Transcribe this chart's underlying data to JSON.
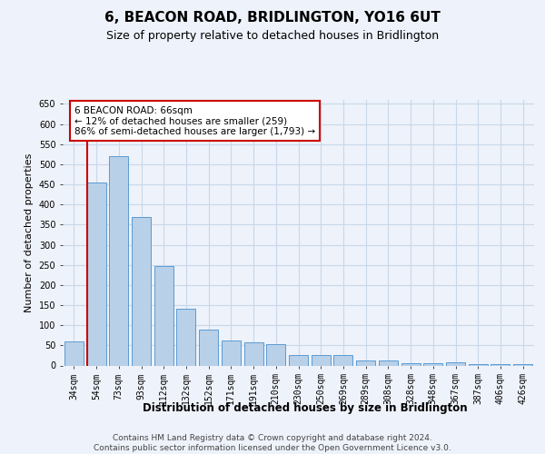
{
  "title": "6, BEACON ROAD, BRIDLINGTON, YO16 6UT",
  "subtitle": "Size of property relative to detached houses in Bridlington",
  "xlabel": "Distribution of detached houses by size in Bridlington",
  "ylabel": "Number of detached properties",
  "categories": [
    "34sqm",
    "54sqm",
    "73sqm",
    "93sqm",
    "112sqm",
    "132sqm",
    "152sqm",
    "171sqm",
    "191sqm",
    "210sqm",
    "230sqm",
    "250sqm",
    "269sqm",
    "289sqm",
    "308sqm",
    "328sqm",
    "348sqm",
    "367sqm",
    "387sqm",
    "406sqm",
    "426sqm"
  ],
  "values": [
    60,
    455,
    520,
    368,
    248,
    140,
    90,
    62,
    58,
    53,
    25,
    25,
    25,
    12,
    12,
    6,
    6,
    8,
    3,
    3,
    3
  ],
  "bar_color": "#b8d0e8",
  "bar_edge_color": "#5b9bd5",
  "grid_color": "#c8d8ea",
  "background_color": "#eef2fa",
  "plot_bg_color": "#eef2fa",
  "annotation_line1": "6 BEACON ROAD: 66sqm",
  "annotation_line2": "← 12% of detached houses are smaller (259)",
  "annotation_line3": "86% of semi-detached houses are larger (1,793) →",
  "vline_color": "#cc0000",
  "ylim": [
    0,
    660
  ],
  "yticks": [
    0,
    50,
    100,
    150,
    200,
    250,
    300,
    350,
    400,
    450,
    500,
    550,
    600,
    650
  ],
  "footer_line1": "Contains HM Land Registry data © Crown copyright and database right 2024.",
  "footer_line2": "Contains public sector information licensed under the Open Government Licence v3.0.",
  "title_fontsize": 11,
  "subtitle_fontsize": 9,
  "xlabel_fontsize": 8.5,
  "ylabel_fontsize": 8,
  "tick_fontsize": 7,
  "footer_fontsize": 6.5,
  "annotation_fontsize": 7.5
}
